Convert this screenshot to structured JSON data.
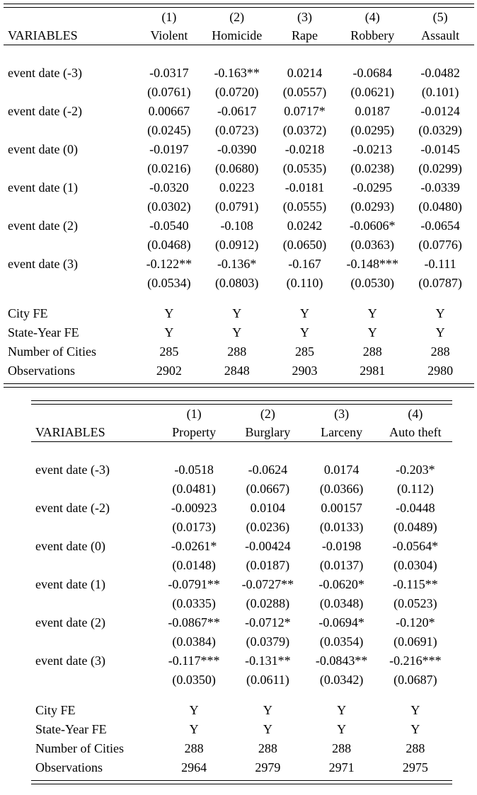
{
  "page": {
    "background": "#ffffff",
    "text_color": "#000000"
  },
  "tables": [
    {
      "name": "violent-crime-panel",
      "header_label": "VARIABLES",
      "column_numbers": [
        "(1)",
        "(2)",
        "(3)",
        "(4)",
        "(5)"
      ],
      "column_names": [
        "Violent",
        "Homicide",
        "Rape",
        "Robbery",
        "Assault"
      ],
      "rows": [
        {
          "label": "event date (-3)",
          "coefs": [
            "-0.0317",
            "-0.163**",
            "0.0214",
            "-0.0684",
            "-0.0482"
          ],
          "ses": [
            "(0.0761)",
            "(0.0720)",
            "(0.0557)",
            "(0.0621)",
            "(0.101)"
          ]
        },
        {
          "label": "event date (-2)",
          "coefs": [
            "0.00667",
            "-0.0617",
            "0.0717*",
            "0.0187",
            "-0.0124"
          ],
          "ses": [
            "(0.0245)",
            "(0.0723)",
            "(0.0372)",
            "(0.0295)",
            "(0.0329)"
          ]
        },
        {
          "label": "event date (0)",
          "coefs": [
            "-0.0197",
            "-0.0390",
            "-0.0218",
            "-0.0213",
            "-0.0145"
          ],
          "ses": [
            "(0.0216)",
            "(0.0680)",
            "(0.0535)",
            "(0.0238)",
            "(0.0299)"
          ]
        },
        {
          "label": "event date (1)",
          "coefs": [
            "-0.0320",
            "0.0223",
            "-0.0181",
            "-0.0295",
            "-0.0339"
          ],
          "ses": [
            "(0.0302)",
            "(0.0791)",
            "(0.0555)",
            "(0.0293)",
            "(0.0480)"
          ]
        },
        {
          "label": "event date (2)",
          "coefs": [
            "-0.0540",
            "-0.108",
            "0.0242",
            "-0.0606*",
            "-0.0654"
          ],
          "ses": [
            "(0.0468)",
            "(0.0912)",
            "(0.0650)",
            "(0.0363)",
            "(0.0776)"
          ]
        },
        {
          "label": "event date (3)",
          "coefs": [
            "-0.122**",
            "-0.136*",
            "-0.167",
            "-0.148***",
            "-0.111"
          ],
          "ses": [
            "(0.0534)",
            "(0.0803)",
            "(0.110)",
            "(0.0530)",
            "(0.0787)"
          ]
        }
      ],
      "footer_rows": [
        {
          "label": "City FE",
          "values": [
            "Y",
            "Y",
            "Y",
            "Y",
            "Y"
          ]
        },
        {
          "label": "State-Year FE",
          "values": [
            "Y",
            "Y",
            "Y",
            "Y",
            "Y"
          ]
        },
        {
          "label": "Number of Cities",
          "values": [
            "285",
            "288",
            "285",
            "288",
            "288"
          ]
        },
        {
          "label": "Observations",
          "values": [
            "2902",
            "2848",
            "2903",
            "2981",
            "2980"
          ]
        }
      ]
    },
    {
      "name": "property-crime-panel",
      "header_label": "VARIABLES",
      "column_numbers": [
        "(1)",
        "(2)",
        "(3)",
        "(4)"
      ],
      "column_names": [
        "Property",
        "Burglary",
        "Larceny",
        "Auto theft"
      ],
      "rows": [
        {
          "label": "event date (-3)",
          "coefs": [
            "-0.0518",
            "-0.0624",
            "0.0174",
            "-0.203*"
          ],
          "ses": [
            "(0.0481)",
            "(0.0667)",
            "(0.0366)",
            "(0.112)"
          ]
        },
        {
          "label": "event date (-2)",
          "coefs": [
            "-0.00923",
            "0.0104",
            "0.00157",
            "-0.0448"
          ],
          "ses": [
            "(0.0173)",
            "(0.0236)",
            "(0.0133)",
            "(0.0489)"
          ]
        },
        {
          "label": "event date (0)",
          "coefs": [
            "-0.0261*",
            "-0.00424",
            "-0.0198",
            "-0.0564*"
          ],
          "ses": [
            "(0.0148)",
            "(0.0187)",
            "(0.0137)",
            "(0.0304)"
          ]
        },
        {
          "label": "event date (1)",
          "coefs": [
            "-0.0791**",
            "-0.0727**",
            "-0.0620*",
            "-0.115**"
          ],
          "ses": [
            "(0.0335)",
            "(0.0288)",
            "(0.0348)",
            "(0.0523)"
          ]
        },
        {
          "label": "event date (2)",
          "coefs": [
            "-0.0867**",
            "-0.0712*",
            "-0.0694*",
            "-0.120*"
          ],
          "ses": [
            "(0.0384)",
            "(0.0379)",
            "(0.0354)",
            "(0.0691)"
          ]
        },
        {
          "label": "event date (3)",
          "coefs": [
            "-0.117***",
            "-0.131**",
            "-0.0843**",
            "-0.216***"
          ],
          "ses": [
            "(0.0350)",
            "(0.0611)",
            "(0.0342)",
            "(0.0687)"
          ]
        }
      ],
      "footer_rows": [
        {
          "label": "City FE",
          "values": [
            "Y",
            "Y",
            "Y",
            "Y"
          ]
        },
        {
          "label": "State-Year FE",
          "values": [
            "Y",
            "Y",
            "Y",
            "Y"
          ]
        },
        {
          "label": "Number of Cities",
          "values": [
            "288",
            "288",
            "288",
            "288"
          ]
        },
        {
          "label": "Observations",
          "values": [
            "2964",
            "2979",
            "2971",
            "2975"
          ]
        }
      ]
    }
  ]
}
